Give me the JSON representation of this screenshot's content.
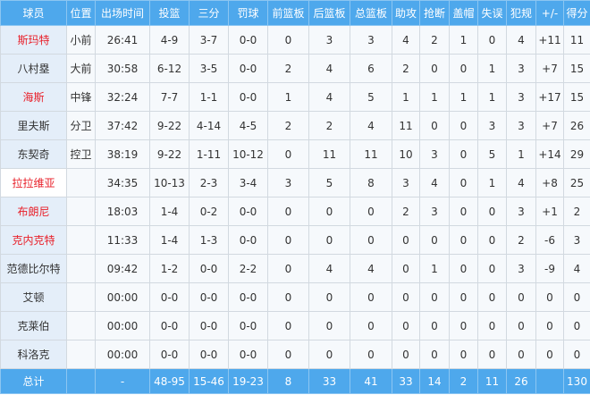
{
  "colors": {
    "header_bg": "#4ea8ec",
    "highlight_name": "#e8202a"
  },
  "headers": [
    "球员",
    "位置",
    "出场时间",
    "投篮",
    "三分",
    "罚球",
    "前篮板",
    "后篮板",
    "总篮板",
    "助攻",
    "抢断",
    "盖帽",
    "失误",
    "犯规",
    "+/-",
    "得分"
  ],
  "players": [
    {
      "name": "斯玛特",
      "red": true,
      "stats": [
        "小前",
        "26:41",
        "4-9",
        "3-7",
        "0-0",
        "0",
        "3",
        "3",
        "4",
        "2",
        "1",
        "0",
        "4",
        "+11",
        "11"
      ]
    },
    {
      "name": "八村塁",
      "red": false,
      "stats": [
        "大前",
        "30:58",
        "6-12",
        "3-5",
        "0-0",
        "2",
        "4",
        "6",
        "2",
        "0",
        "0",
        "1",
        "3",
        "+7",
        "15"
      ]
    },
    {
      "name": "海斯",
      "red": true,
      "stats": [
        "中锋",
        "32:24",
        "7-7",
        "1-1",
        "0-0",
        "1",
        "4",
        "5",
        "1",
        "1",
        "1",
        "1",
        "3",
        "+17",
        "15"
      ]
    },
    {
      "name": "里夫斯",
      "red": false,
      "stats": [
        "分卫",
        "37:42",
        "9-22",
        "4-14",
        "4-5",
        "2",
        "2",
        "4",
        "11",
        "0",
        "0",
        "3",
        "3",
        "+7",
        "26"
      ]
    },
    {
      "name": "东契奇",
      "red": false,
      "stats": [
        "控卫",
        "38:19",
        "9-22",
        "1-11",
        "10-12",
        "0",
        "11",
        "11",
        "10",
        "3",
        "0",
        "5",
        "1",
        "+14",
        "29"
      ]
    },
    {
      "name": "拉拉维亚",
      "red": true,
      "stats": [
        "",
        "34:35",
        "10-13",
        "2-3",
        "3-4",
        "3",
        "5",
        "8",
        "3",
        "4",
        "0",
        "1",
        "4",
        "+8",
        "25"
      ]
    },
    {
      "name": "布朗尼",
      "red": true,
      "stats": [
        "",
        "18:03",
        "1-4",
        "0-2",
        "0-0",
        "0",
        "0",
        "0",
        "2",
        "3",
        "0",
        "0",
        "3",
        "+1",
        "2"
      ]
    },
    {
      "name": "克内克特",
      "red": true,
      "stats": [
        "",
        "11:33",
        "1-4",
        "1-3",
        "0-0",
        "0",
        "0",
        "0",
        "0",
        "0",
        "0",
        "0",
        "2",
        "-6",
        "3"
      ]
    },
    {
      "name": "范德比尔特",
      "red": false,
      "stats": [
        "",
        "09:42",
        "1-2",
        "0-0",
        "2-2",
        "0",
        "4",
        "4",
        "0",
        "1",
        "0",
        "0",
        "3",
        "-9",
        "4"
      ]
    },
    {
      "name": "艾顿",
      "red": false,
      "stats": [
        "",
        "00:00",
        "0-0",
        "0-0",
        "0-0",
        "0",
        "0",
        "0",
        "0",
        "0",
        "0",
        "0",
        "0",
        "0",
        "0"
      ]
    },
    {
      "name": "克莱伯",
      "red": false,
      "stats": [
        "",
        "00:00",
        "0-0",
        "0-0",
        "0-0",
        "0",
        "0",
        "0",
        "0",
        "0",
        "0",
        "0",
        "0",
        "0",
        "0"
      ]
    },
    {
      "name": "科洛克",
      "red": false,
      "stats": [
        "",
        "00:00",
        "0-0",
        "0-0",
        "0-0",
        "0",
        "0",
        "0",
        "0",
        "0",
        "0",
        "0",
        "0",
        "0",
        "0"
      ]
    }
  ],
  "totals": [
    "总计",
    "",
    "-",
    "48-95",
    "15-46",
    "19-23",
    "8",
    "33",
    "41",
    "33",
    "14",
    "2",
    "11",
    "26",
    "",
    "130"
  ]
}
